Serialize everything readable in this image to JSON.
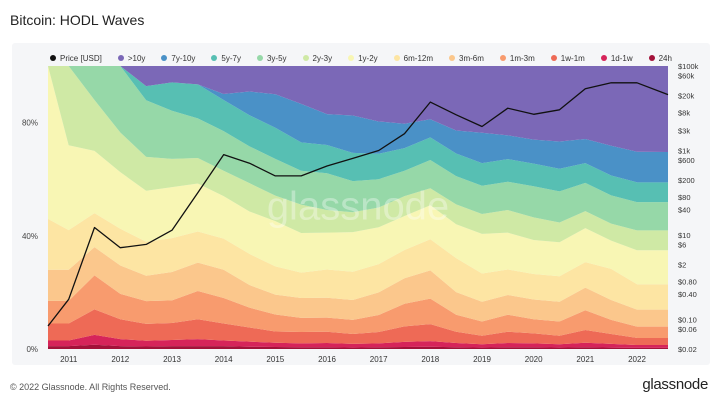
{
  "header": {
    "title": "Bitcoin: HODL Waves"
  },
  "footer": {
    "copyright": "© 2022 Glassnode. All Rights Reserved.",
    "brand": "glassnode"
  },
  "watermark": "glassnode",
  "chart_data": {
    "type": "area",
    "title": "Bitcoin: HODL Waves",
    "stacked": true,
    "percent_axis": {
      "ticks": [
        0,
        40,
        80
      ],
      "tick_labels": [
        "0%",
        "40%",
        "80%"
      ],
      "range": [
        0,
        100
      ]
    },
    "price_axis": {
      "scale": "log",
      "unit": "USD",
      "ticks": [
        0.02,
        0.06,
        0.1,
        0.4,
        0.8,
        2,
        6,
        10,
        40,
        80,
        200,
        600,
        1000,
        3000,
        8000,
        20000,
        60000,
        100000
      ],
      "tick_labels": [
        "$0.02",
        "$0.06",
        "$0.10",
        "$0.40",
        "$0.80",
        "$2",
        "$6",
        "$10",
        "$40",
        "$80",
        "$200",
        "$600",
        "$1k",
        "$3k",
        "$8k",
        "$20k",
        "$60k",
        "$100k"
      ]
    },
    "x": [
      "2010.6",
      "2011",
      "2011.5",
      "2012",
      "2012.5",
      "2013",
      "2013.5",
      "2014",
      "2014.5",
      "2015",
      "2015.5",
      "2016",
      "2016.5",
      "2017",
      "2017.5",
      "2018",
      "2018.5",
      "2019",
      "2019.5",
      "2020",
      "2020.5",
      "2021",
      "2021.5",
      "2022",
      "2022.6"
    ],
    "x_ticks": [
      "2011",
      "2012",
      "2013",
      "2014",
      "2015",
      "2016",
      "2017",
      "2018",
      "2019",
      "2020",
      "2021",
      "2022"
    ],
    "legend_position": "top",
    "series": [
      {
        "name": "24h",
        "color": "#a3123a",
        "values": [
          1.0,
          1.0,
          1.5,
          1.0,
          0.9,
          1.0,
          1.0,
          1.0,
          0.8,
          0.7,
          0.6,
          0.6,
          0.5,
          0.6,
          0.7,
          0.8,
          0.6,
          0.5,
          0.6,
          0.6,
          0.5,
          0.6,
          0.5,
          0.4,
          0.4
        ]
      },
      {
        "name": "1d-1w",
        "color": "#d6245a",
        "values": [
          2.0,
          2.0,
          3.5,
          2.5,
          2.0,
          2.2,
          2.5,
          2.0,
          1.8,
          1.5,
          1.4,
          1.5,
          1.3,
          1.4,
          1.8,
          2.0,
          1.5,
          1.2,
          1.5,
          1.4,
          1.2,
          1.6,
          1.3,
          1.0,
          1.0
        ]
      },
      {
        "name": "1w-1m",
        "color": "#ee6a56",
        "values": [
          6,
          6,
          9,
          7,
          6,
          6,
          7,
          6,
          5,
          4,
          4,
          4,
          3.5,
          4,
          5.5,
          6,
          4,
          3,
          4,
          3.5,
          3,
          4.5,
          3.5,
          2.5,
          2.5
        ]
      },
      {
        "name": "1m-3m",
        "color": "#f89b6e",
        "values": [
          8,
          8,
          12,
          9,
          8,
          8,
          10,
          9,
          7,
          6,
          5,
          5,
          5,
          6,
          8,
          9,
          6,
          5,
          6,
          5,
          5,
          7,
          5,
          4,
          4
        ]
      },
      {
        "name": "3m-6m",
        "color": "#fbc78c",
        "values": [
          11,
          11,
          10,
          10,
          9,
          10,
          10,
          10,
          8,
          7,
          7,
          7,
          7,
          8,
          9,
          10,
          8,
          7,
          7,
          7,
          7,
          8,
          7,
          6,
          6
        ]
      },
      {
        "name": "6m-12m",
        "color": "#fde5a3",
        "values": [
          18,
          14,
          12,
          13,
          12,
          12,
          11,
          11,
          11,
          10,
          9,
          10,
          10,
          10,
          10,
          11,
          12,
          10,
          9,
          9,
          9,
          9,
          11,
          9,
          9
        ]
      },
      {
        "name": "1y-2y",
        "color": "#f8f6b4",
        "values": [
          54,
          30,
          22,
          20,
          18,
          18,
          17,
          15,
          15,
          16,
          14,
          13,
          14,
          13,
          12,
          12,
          12,
          14,
          13,
          12,
          12,
          12,
          10,
          12,
          12
        ]
      },
      {
        "name": "2y-3y",
        "color": "#cfe9a5",
        "values": [
          0,
          28,
          18,
          14,
          12,
          10,
          9,
          9,
          10,
          9,
          10,
          8,
          7,
          7,
          7,
          6,
          7,
          7,
          8,
          8,
          7,
          6,
          6,
          7,
          7
        ]
      },
      {
        "name": "3y-5y",
        "color": "#96d8a8",
        "values": [
          0,
          0,
          12,
          24,
          20,
          17,
          14,
          14,
          13,
          13,
          12,
          13,
          11,
          10,
          9,
          10,
          10,
          10,
          10,
          11,
          11,
          10,
          10,
          10,
          10
        ]
      },
      {
        "name": "5y-7y",
        "color": "#57bfb3",
        "values": [
          0,
          0,
          0,
          0,
          5,
          10,
          12,
          11,
          11,
          11,
          10,
          10,
          10,
          9,
          8,
          8,
          8,
          8,
          8,
          8,
          8,
          7,
          7,
          7,
          7
        ]
      },
      {
        "name": "7y-10y",
        "color": "#4a91c7",
        "values": [
          0,
          0,
          0,
          0,
          0,
          0,
          0,
          2.1,
          8.4,
          11.8,
          13.6,
          10.9,
          13.2,
          11.4,
          8.6,
          6.4,
          8.1,
          10.7,
          8.4,
          8.5,
          9.6,
          8.5,
          10.5,
          10.8,
          10.7
        ]
      },
      {
        "name": ">10y",
        "color": "#7b68b7",
        "values": [
          0,
          0,
          0,
          0,
          0,
          0,
          0,
          0,
          0,
          0,
          0,
          0,
          0,
          0,
          0,
          0,
          0,
          0,
          0,
          0,
          0,
          0,
          0,
          0,
          0
        ]
      },
      {
        "name": "Price [USD]",
        "color": "#111111",
        "axis": "price",
        "values": [
          0.07,
          0.3,
          15,
          5,
          6,
          13,
          100,
          800,
          500,
          250,
          250,
          430,
          650,
          1000,
          2500,
          14000,
          7000,
          3700,
          10000,
          7200,
          9200,
          29000,
          40000,
          40000,
          21000
        ]
      }
    ]
  }
}
